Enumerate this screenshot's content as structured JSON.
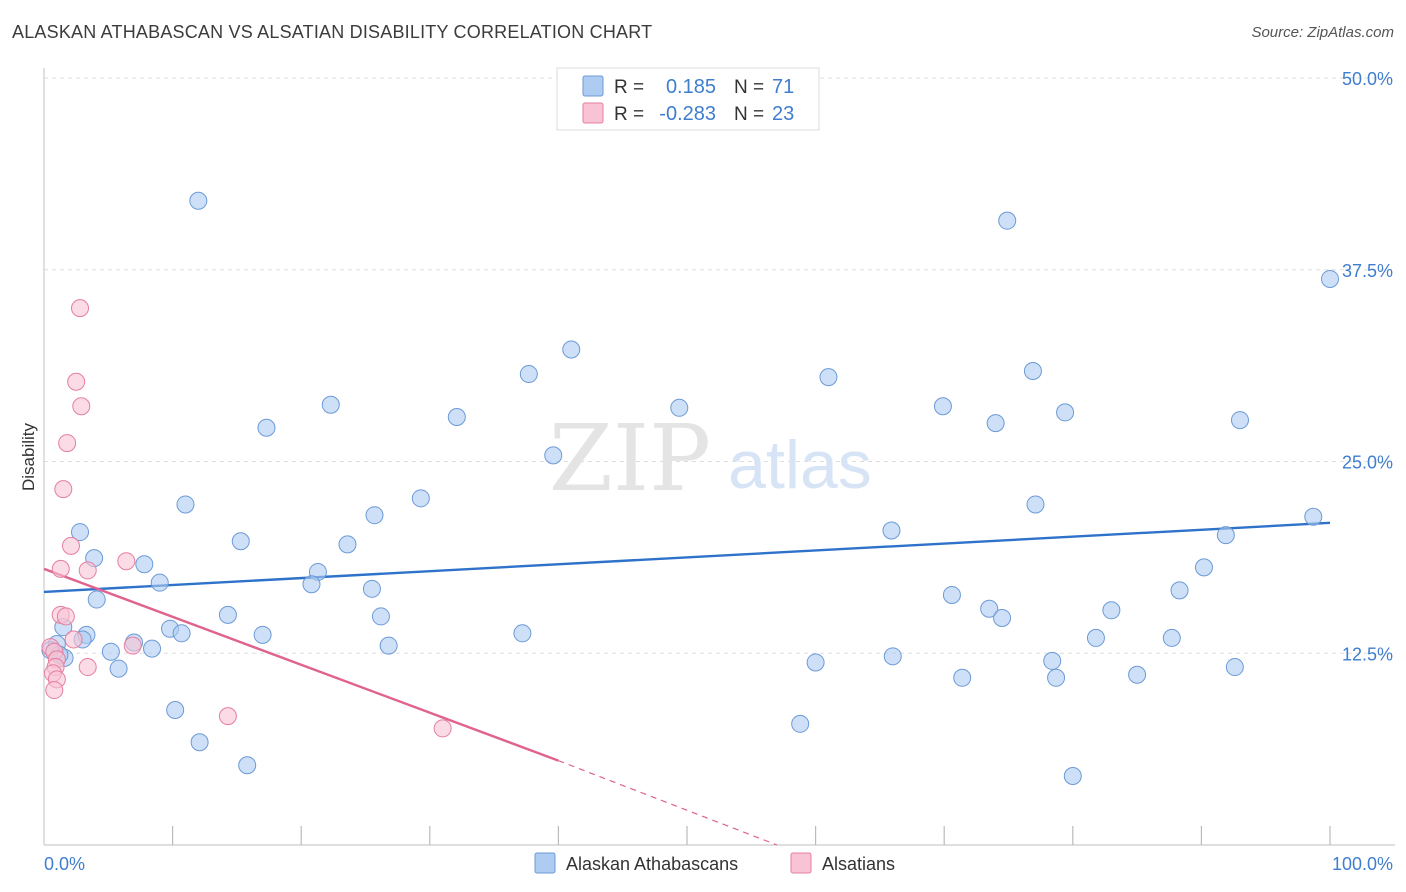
{
  "title": "ALASKAN ATHABASCAN VS ALSATIAN DISABILITY CORRELATION CHART",
  "source": "Source: ZipAtlas.com",
  "watermark": {
    "zip": "ZIP",
    "atlas": "atlas"
  },
  "legend_box": {
    "rows": [
      {
        "r_label": "R =",
        "r_value": "0.185",
        "n_label": "N =",
        "n_value": "71"
      },
      {
        "r_label": "R =",
        "r_value": "-0.283",
        "n_label": "N =",
        "n_value": "23"
      }
    ]
  },
  "colors": {
    "blue_fill": "#aecbf1",
    "blue_stroke": "#6c9ad6",
    "blue_line": "#2e72c9",
    "pink_fill": "#f8c3d4",
    "pink_stroke": "#e57fa0",
    "pink_line": "#e0628e",
    "axis_text": "#3f7ecf",
    "grid": "#dddddd"
  },
  "chart_data": {
    "type": "scatter",
    "title": "ALASKAN ATHABASCAN VS ALSATIAN DISABILITY CORRELATION CHART",
    "xlabel": "",
    "ylabel": "Disability",
    "xlim": [
      0,
      100
    ],
    "ylim": [
      0,
      50
    ],
    "x_tick_labels": [
      "0.0%",
      "100.0%"
    ],
    "y_ticks": [
      12.5,
      25.0,
      37.5,
      50.0
    ],
    "y_tick_labels": [
      "12.5%",
      "25.0%",
      "37.5%",
      "50.0%"
    ],
    "grid": true,
    "legend_position": "bottom",
    "series": [
      {
        "name": "Alaskan Athabascans",
        "color": "#aecbf1",
        "r": 0.185,
        "n": 71,
        "trend": {
          "x": [
            0,
            100
          ],
          "y": [
            16.5,
            21.0
          ]
        },
        "points": [
          [
            12.0,
            42.0
          ],
          [
            74.9,
            40.7
          ],
          [
            100.0,
            36.9
          ],
          [
            41.0,
            32.3
          ],
          [
            37.7,
            30.7
          ],
          [
            61.0,
            30.5
          ],
          [
            76.9,
            30.9
          ],
          [
            22.3,
            28.7
          ],
          [
            49.4,
            28.5
          ],
          [
            69.9,
            28.6
          ],
          [
            32.1,
            27.9
          ],
          [
            74.0,
            27.5
          ],
          [
            79.4,
            28.2
          ],
          [
            93.0,
            27.7
          ],
          [
            17.3,
            27.2
          ],
          [
            39.6,
            25.4
          ],
          [
            29.3,
            22.6
          ],
          [
            11.0,
            22.2
          ],
          [
            25.7,
            21.5
          ],
          [
            77.1,
            22.2
          ],
          [
            98.7,
            21.4
          ],
          [
            2.8,
            20.4
          ],
          [
            65.9,
            20.5
          ],
          [
            91.9,
            20.2
          ],
          [
            15.3,
            19.8
          ],
          [
            23.6,
            19.6
          ],
          [
            3.9,
            18.7
          ],
          [
            7.8,
            18.3
          ],
          [
            90.2,
            18.1
          ],
          [
            21.3,
            17.8
          ],
          [
            20.8,
            17.0
          ],
          [
            9.0,
            17.1
          ],
          [
            25.5,
            16.7
          ],
          [
            88.3,
            16.6
          ],
          [
            70.6,
            16.3
          ],
          [
            4.1,
            16.0
          ],
          [
            73.5,
            15.4
          ],
          [
            83.0,
            15.3
          ],
          [
            14.3,
            15.0
          ],
          [
            26.2,
            14.9
          ],
          [
            74.5,
            14.8
          ],
          [
            1.5,
            14.2
          ],
          [
            9.8,
            14.1
          ],
          [
            1.0,
            13.1
          ],
          [
            3.3,
            13.7
          ],
          [
            7.0,
            13.2
          ],
          [
            10.7,
            13.8
          ],
          [
            17.0,
            13.7
          ],
          [
            37.2,
            13.8
          ],
          [
            81.8,
            13.5
          ],
          [
            87.7,
            13.5
          ],
          [
            0.5,
            12.7
          ],
          [
            1.6,
            12.2
          ],
          [
            5.2,
            12.6
          ],
          [
            8.4,
            12.8
          ],
          [
            26.8,
            13.0
          ],
          [
            60.0,
            11.9
          ],
          [
            66.0,
            12.3
          ],
          [
            5.8,
            11.5
          ],
          [
            78.4,
            12.0
          ],
          [
            92.6,
            11.6
          ],
          [
            71.4,
            10.9
          ],
          [
            85.0,
            11.1
          ],
          [
            78.7,
            10.9
          ],
          [
            10.2,
            8.8
          ],
          [
            12.1,
            6.7
          ],
          [
            58.8,
            7.9
          ],
          [
            15.8,
            5.2
          ],
          [
            80.0,
            4.5
          ],
          [
            1.2,
            12.4
          ],
          [
            3.0,
            13.4
          ]
        ]
      },
      {
        "name": "Alsatians",
        "color": "#f8c3d4",
        "r": -0.283,
        "n": 23,
        "trend": {
          "x": [
            0,
            40
          ],
          "y": [
            18.0,
            5.5
          ],
          "dashed_to": [
            57,
            0
          ]
        },
        "points": [
          [
            2.8,
            35.0
          ],
          [
            2.5,
            30.2
          ],
          [
            2.9,
            28.6
          ],
          [
            1.8,
            26.2
          ],
          [
            1.5,
            23.2
          ],
          [
            2.1,
            19.5
          ],
          [
            6.4,
            18.5
          ],
          [
            1.3,
            18.0
          ],
          [
            3.4,
            17.9
          ],
          [
            1.3,
            15.0
          ],
          [
            1.7,
            14.9
          ],
          [
            2.3,
            13.4
          ],
          [
            6.9,
            13.0
          ],
          [
            0.5,
            12.9
          ],
          [
            0.8,
            12.6
          ],
          [
            1.0,
            12.1
          ],
          [
            0.9,
            11.6
          ],
          [
            0.7,
            11.2
          ],
          [
            3.4,
            11.6
          ],
          [
            1.0,
            10.8
          ],
          [
            0.8,
            10.1
          ],
          [
            14.3,
            8.4
          ],
          [
            31.0,
            7.6
          ]
        ]
      }
    ]
  }
}
